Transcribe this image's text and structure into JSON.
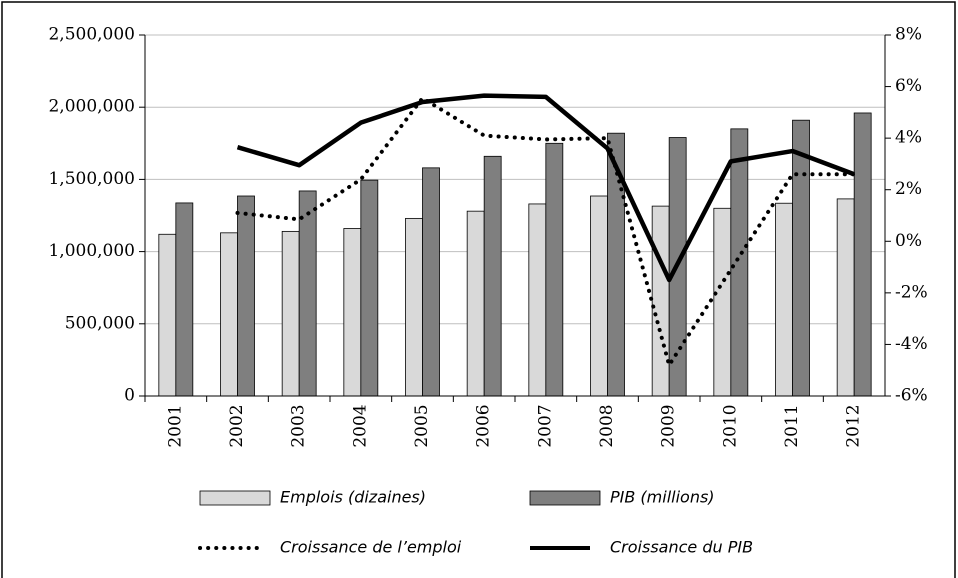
{
  "chart_data": {
    "type": "bar-line",
    "categories": [
      "2001",
      "2002",
      "2003",
      "2004",
      "2005",
      "2006",
      "2007",
      "2008",
      "2009",
      "2010",
      "2011",
      "2012"
    ],
    "series": [
      {
        "name": "Emplois (dizaines)",
        "type": "bar",
        "color": "#d9d9d9",
        "values": [
          1120000,
          1130000,
          1140000,
          1160000,
          1230000,
          1280000,
          1330000,
          1385000,
          1315000,
          1300000,
          1335000,
          1365000
        ]
      },
      {
        "name": "PIB (millions)",
        "type": "bar",
        "color": "#7f7f7f",
        "values": [
          1337000,
          1385000,
          1420000,
          1495000,
          1580000,
          1660000,
          1750000,
          1820000,
          1790000,
          1850000,
          1910000,
          1960000
        ]
      },
      {
        "name": "Croissance de l’emploi",
        "type": "line",
        "axis": "y2",
        "style": "dotted",
        "color": "#000000",
        "values": [
          null,
          1.1,
          0.85,
          2.4,
          5.55,
          4.1,
          3.95,
          4.0,
          -4.8,
          -1.1,
          2.6,
          2.6
        ]
      },
      {
        "name": "Croissance du PIB",
        "type": "line",
        "axis": "y2",
        "style": "solid",
        "color": "#000000",
        "values": [
          null,
          3.65,
          2.95,
          4.6,
          5.4,
          5.65,
          5.6,
          3.6,
          -1.5,
          3.1,
          3.5,
          2.6
        ]
      }
    ],
    "ylim": [
      0,
      2500000
    ],
    "yticks": [
      0,
      {
        "value": 500000,
        "label": "500,000"
      },
      {
        "value": 1000000,
        "label": "1,000,000"
      },
      {
        "value": 1500000,
        "label": "1,500,000"
      },
      {
        "value": 2000000,
        "label": "2,000,000"
      },
      {
        "value": 2500000,
        "label": "2,500,000"
      }
    ],
    "y2lim": [
      -6,
      8
    ],
    "y2ticks": [
      {
        "value": -6,
        "label": "-6%"
      },
      {
        "value": -4,
        "label": "-4%"
      },
      {
        "value": -2,
        "label": "-2%"
      },
      {
        "value": 0,
        "label": "0%"
      },
      {
        "value": 2,
        "label": "2%"
      },
      {
        "value": 4,
        "label": "4%"
      },
      {
        "value": 6,
        "label": "6%"
      },
      {
        "value": 8,
        "label": "8%"
      }
    ],
    "grid": true,
    "legend": "bottom"
  }
}
